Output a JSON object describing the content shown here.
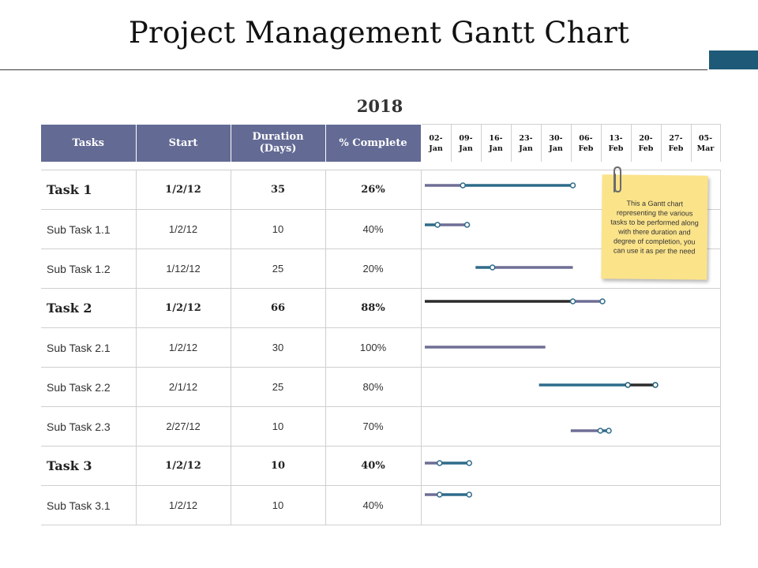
{
  "title": "Project Management Gantt Chart",
  "year": "2018",
  "colors": {
    "header_bg": "#636a94",
    "accent": "#1e5a77",
    "bar_purple": "#6e6e96",
    "bar_teal": "#2f6b8a",
    "bar_dark": "#2b2b2b",
    "sticky": "#fbe38a"
  },
  "table": {
    "headers": {
      "tasks": "Tasks",
      "start": "Start",
      "duration_line1": "Duration",
      "duration_line2": "(Days)",
      "complete": "% Complete"
    },
    "weeks": [
      {
        "day": "02-",
        "month": "Jan"
      },
      {
        "day": "09-",
        "month": "Jan"
      },
      {
        "day": "16-",
        "month": "Jan"
      },
      {
        "day": "23-",
        "month": "Jan"
      },
      {
        "day": "30-",
        "month": "Jan"
      },
      {
        "day": "06-",
        "month": "Feb"
      },
      {
        "day": "13-",
        "month": "Feb"
      },
      {
        "day": "20-",
        "month": "Feb"
      },
      {
        "day": "27-",
        "month": "Feb"
      },
      {
        "day": "05-",
        "month": "Mar"
      }
    ],
    "rows": [
      {
        "name": "Task 1",
        "start": "1/2/12",
        "duration": "35",
        "complete": "26%"
      },
      {
        "name": "Sub Task 1.1",
        "start": "1/2/12",
        "duration": "10",
        "complete": "40%"
      },
      {
        "name": "Sub Task 1.2",
        "start": "1/12/12",
        "duration": "25",
        "complete": "20%"
      },
      {
        "name": "Task 2",
        "start": "1/2/12",
        "duration": "66",
        "complete": "88%"
      },
      {
        "name": "Sub Task 2.1",
        "start": "1/2/12",
        "duration": "30",
        "complete": "100%"
      },
      {
        "name": "Sub Task 2.2",
        "start": "2/1/12",
        "duration": "25",
        "complete": "80%"
      },
      {
        "name": "Sub Task 2.3",
        "start": "2/27/12",
        "duration": "10",
        "complete": "70%"
      },
      {
        "name": "Task 3",
        "start": "1/2/12",
        "duration": "10",
        "complete": "40%"
      },
      {
        "name": "Sub Task 3.1",
        "start": "1/2/12",
        "duration": "10",
        "complete": "40%"
      }
    ]
  },
  "chart_data": {
    "type": "gantt",
    "title": "Project Management Gantt Chart",
    "x_unit": "days since 02-Jan",
    "x_range": [
      0,
      70
    ],
    "bars": [
      {
        "task": "Task 1",
        "segments": [
          {
            "start": 0,
            "end": 9,
            "color": "purple"
          },
          {
            "start": 9,
            "end": 35,
            "color": "teal"
          }
        ],
        "markers": [
          9,
          35
        ]
      },
      {
        "task": "Sub Task 1.1",
        "segments": [
          {
            "start": 0,
            "end": 3,
            "color": "teal"
          },
          {
            "start": 3,
            "end": 10,
            "color": "purple"
          }
        ],
        "markers": [
          3,
          10
        ]
      },
      {
        "task": "Sub Task 1.2",
        "segments": [
          {
            "start": 12,
            "end": 16,
            "color": "teal"
          },
          {
            "start": 16,
            "end": 35,
            "color": "purple"
          }
        ],
        "markers": [
          16
        ]
      },
      {
        "task": "Task 2",
        "segments": [
          {
            "start": 0,
            "end": 35,
            "color": "dark"
          },
          {
            "start": 35,
            "end": 42,
            "color": "purple"
          }
        ],
        "markers": [
          35,
          42
        ]
      },
      {
        "task": "Sub Task 2.1",
        "segments": [
          {
            "start": 0,
            "end": 28.5,
            "color": "purple"
          }
        ],
        "markers": []
      },
      {
        "task": "Sub Task 2.2",
        "segments": [
          {
            "start": 27,
            "end": 48,
            "color": "teal"
          },
          {
            "start": 48,
            "end": 54.5,
            "color": "dark"
          }
        ],
        "markers": [
          48,
          54.5
        ]
      },
      {
        "task": "Sub Task 2.3",
        "segments": [
          {
            "start": 34.5,
            "end": 41.5,
            "color": "purple"
          },
          {
            "start": 41.5,
            "end": 43.5,
            "color": "teal"
          }
        ],
        "markers": [
          41.5,
          43.5
        ]
      },
      {
        "task": "Task 3",
        "segments": [
          {
            "start": 0,
            "end": 3.5,
            "color": "purple"
          },
          {
            "start": 3.5,
            "end": 10.5,
            "color": "teal"
          }
        ],
        "markers": [
          3.5,
          10.5
        ]
      },
      {
        "task": "Sub Task 3.1",
        "segments": [
          {
            "start": 0,
            "end": 3.5,
            "color": "purple"
          },
          {
            "start": 3.5,
            "end": 10.5,
            "color": "teal"
          }
        ],
        "markers": [
          3.5,
          10.5
        ]
      }
    ]
  },
  "note": {
    "text": "This a Gantt chart representing the various tasks to be performed along with there duration and degree of completion, you can use it as per the need"
  }
}
